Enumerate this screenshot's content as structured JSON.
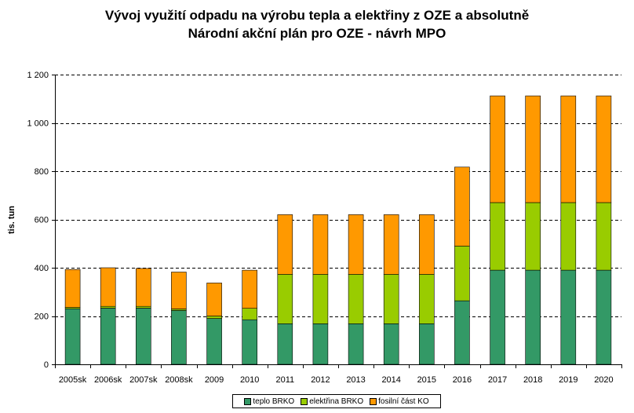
{
  "chart_data": {
    "type": "bar",
    "stacked": true,
    "title": "Vývoj využití odpadu na výrobu tepla a elektřiny z OZE a absolutně",
    "subtitle": "Národní akční plán pro OZE - návrh MPO",
    "xlabel": "",
    "ylabel": "tis. tun",
    "ylim": [
      0,
      1200
    ],
    "yticks": [
      0,
      200,
      400,
      600,
      800,
      1000,
      1200
    ],
    "ytick_labels": [
      "0",
      "200",
      "400",
      "600",
      "800",
      "1 000",
      "1 200"
    ],
    "grid": "horizontal dashed",
    "legend_position": "bottom",
    "categories": [
      "2005sk",
      "2006sk",
      "2007sk",
      "2008sk",
      "2009",
      "2010",
      "2011",
      "2012",
      "2013",
      "2014",
      "2015",
      "2016",
      "2017",
      "2018",
      "2019",
      "2020"
    ],
    "series": [
      {
        "name": "teplo BRKO",
        "color": "#339966",
        "values": [
          230,
          233,
          233,
          223,
          190,
          185,
          168,
          168,
          168,
          168,
          168,
          263,
          390,
          390,
          390,
          390
        ]
      },
      {
        "name": "elektřina BRKO",
        "color": "#99cc00",
        "values": [
          6,
          7,
          7,
          6,
          10,
          47,
          205,
          205,
          205,
          205,
          205,
          227,
          280,
          280,
          280,
          280
        ]
      },
      {
        "name": "fosilní část KO",
        "color": "#ff9900",
        "values": [
          157,
          160,
          157,
          153,
          137,
          158,
          247,
          247,
          247,
          247,
          247,
          327,
          442,
          442,
          442,
          442
        ]
      }
    ]
  }
}
